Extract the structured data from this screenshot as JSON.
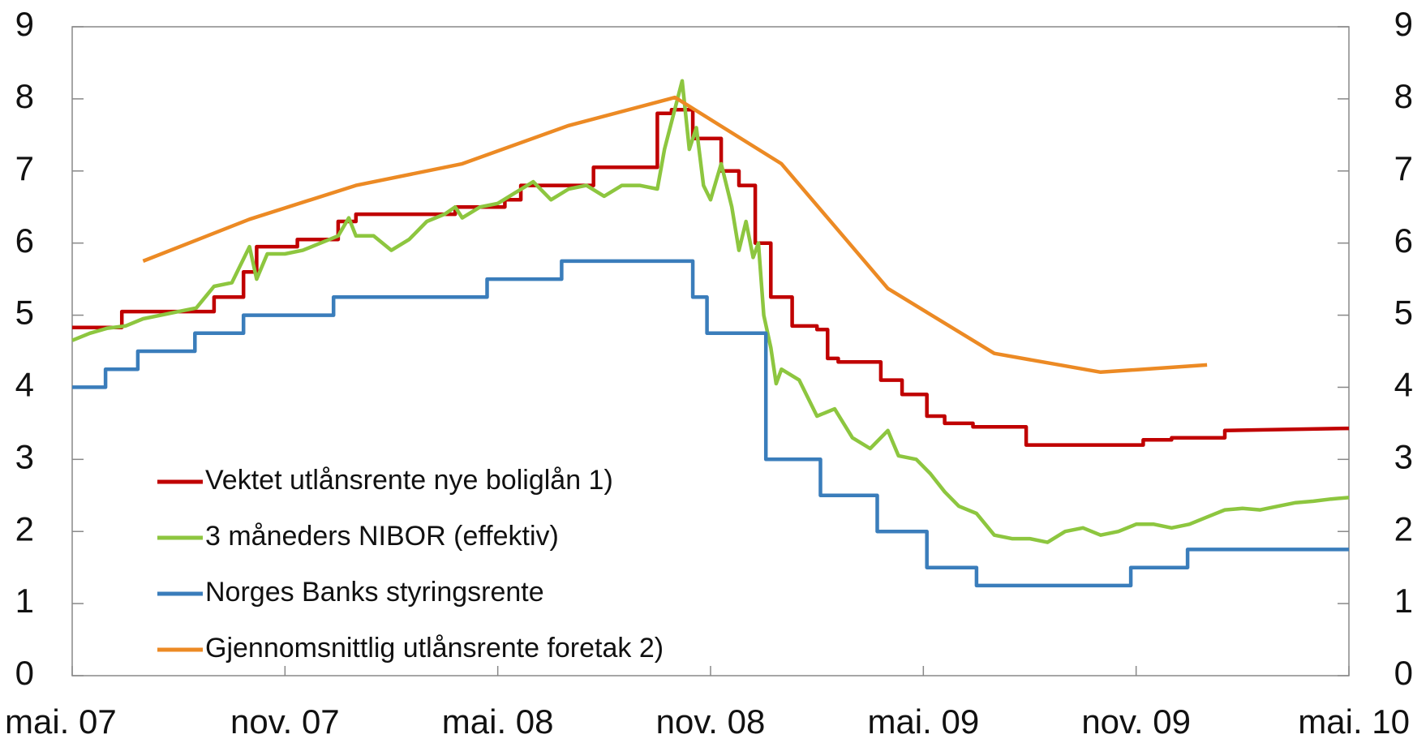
{
  "chart_data": {
    "type": "line",
    "xlim": [
      0,
      36
    ],
    "xticks": [
      {
        "value": 0,
        "label": "mai. 07"
      },
      {
        "value": 6,
        "label": "nov. 07"
      },
      {
        "value": 12,
        "label": "mai. 08"
      },
      {
        "value": 18,
        "label": "nov. 08"
      },
      {
        "value": 24,
        "label": "mai. 09"
      },
      {
        "value": 30,
        "label": "nov. 09"
      },
      {
        "value": 36,
        "label": "mai. 10"
      }
    ],
    "ylim": [
      0,
      9
    ],
    "yticks": [
      0,
      1,
      2,
      3,
      4,
      5,
      6,
      7,
      8,
      9
    ],
    "y2lim": [
      0,
      9
    ],
    "y2ticks": [
      0,
      1,
      2,
      3,
      4,
      5,
      6,
      7,
      8,
      9
    ],
    "legend": "lower left",
    "series": [
      {
        "name": "Vektet utlånsrente nye boliglån 1)",
        "color": "#c00000",
        "x": [
          0,
          1.4,
          1.4,
          4.0,
          4.0,
          4.83,
          4.83,
          5.2,
          5.2,
          6.35,
          6.35,
          7.5,
          7.5,
          8.0,
          8.0,
          10.8,
          10.8,
          12.2,
          12.2,
          12.65,
          12.65,
          14.7,
          14.7,
          16.5,
          16.5,
          16.9,
          16.9,
          17.5,
          17.5,
          18.3,
          18.3,
          18.8,
          18.8,
          19.26,
          19.26,
          19.7,
          19.7,
          20.3,
          20.3,
          21.0,
          21.0,
          21.3,
          21.3,
          21.6,
          21.6,
          22.8,
          22.8,
          23.4,
          23.4,
          24.1,
          24.1,
          24.6,
          24.6,
          25.4,
          25.4,
          26.9,
          26.9,
          30.2,
          30.2,
          31.0,
          31.0,
          32.5,
          32.5,
          36
        ],
        "values": [
          4.83,
          4.83,
          5.05,
          5.05,
          5.25,
          5.25,
          5.6,
          5.6,
          5.95,
          5.95,
          6.05,
          6.05,
          6.3,
          6.3,
          6.4,
          6.4,
          6.5,
          6.5,
          6.6,
          6.6,
          6.8,
          6.8,
          7.05,
          7.05,
          7.8,
          7.8,
          7.85,
          7.85,
          7.45,
          7.45,
          7.0,
          7.0,
          6.8,
          6.8,
          6.0,
          6.0,
          5.25,
          5.25,
          4.85,
          4.85,
          4.8,
          4.8,
          4.4,
          4.4,
          4.35,
          4.35,
          4.1,
          4.1,
          3.9,
          3.9,
          3.6,
          3.6,
          3.5,
          3.5,
          3.45,
          3.45,
          3.2,
          3.2,
          3.27,
          3.27,
          3.3,
          3.3,
          3.4,
          3.43
        ]
      },
      {
        "name": "3 måneders NIBOR (effektiv)",
        "color": "#8dc63f",
        "x": [
          0,
          0.5,
          1,
          1.5,
          2,
          2.5,
          3,
          3.5,
          4,
          4.5,
          5,
          5.2,
          5.5,
          6,
          6.5,
          7,
          7.5,
          7.8,
          8,
          8.5,
          9,
          9.5,
          10,
          10.5,
          10.8,
          11,
          11.5,
          12,
          12.5,
          13,
          13.5,
          14,
          14.5,
          15,
          15.5,
          16,
          16.5,
          16.7,
          17.2,
          17.4,
          17.6,
          17.8,
          18,
          18.3,
          18.6,
          18.8,
          19.0,
          19.2,
          19.35,
          19.5,
          19.7,
          19.85,
          20,
          20.5,
          21,
          21.5,
          22,
          22.5,
          23,
          23.3,
          23.8,
          24.2,
          24.6,
          25,
          25.5,
          26,
          26.5,
          27,
          27.5,
          28,
          28.5,
          29,
          29.5,
          30,
          30.5,
          31,
          31.5,
          32,
          32.5,
          33,
          33.5,
          34,
          34.5,
          35,
          35.5,
          36
        ],
        "values": [
          4.65,
          4.75,
          4.82,
          4.85,
          4.95,
          5.0,
          5.05,
          5.1,
          5.4,
          5.45,
          5.95,
          5.5,
          5.85,
          5.85,
          5.9,
          6.0,
          6.1,
          6.35,
          6.1,
          6.1,
          5.9,
          6.05,
          6.3,
          6.4,
          6.5,
          6.35,
          6.5,
          6.55,
          6.7,
          6.85,
          6.6,
          6.75,
          6.8,
          6.65,
          6.8,
          6.8,
          6.75,
          7.3,
          8.25,
          7.3,
          7.6,
          6.8,
          6.6,
          7.1,
          6.5,
          5.9,
          6.3,
          5.8,
          6.0,
          5.0,
          4.55,
          4.05,
          4.25,
          4.1,
          3.6,
          3.7,
          3.3,
          3.15,
          3.4,
          3.05,
          3.0,
          2.8,
          2.55,
          2.35,
          2.25,
          1.95,
          1.9,
          1.9,
          1.85,
          2.0,
          2.05,
          1.95,
          2.0,
          2.1,
          2.1,
          2.05,
          2.1,
          2.2,
          2.3,
          2.32,
          2.3,
          2.35,
          2.4,
          2.42,
          2.45,
          2.47
        ]
      },
      {
        "name": "Norges Banks styringsrente",
        "color": "#3a7dbb",
        "x": [
          0,
          0.94,
          0.94,
          1.85,
          1.85,
          3.46,
          3.46,
          4.83,
          4.83,
          7.37,
          7.37,
          11.7,
          11.7,
          13.8,
          13.8,
          17.5,
          17.5,
          17.9,
          17.9,
          19.56,
          19.56,
          21.1,
          21.1,
          22.7,
          22.7,
          24.1,
          24.1,
          25.5,
          25.5,
          29.85,
          29.85,
          31.45,
          31.45,
          36
        ],
        "values": [
          4.0,
          4.0,
          4.25,
          4.25,
          4.5,
          4.5,
          4.75,
          4.75,
          5.0,
          5.0,
          5.25,
          5.25,
          5.5,
          5.5,
          5.75,
          5.75,
          5.25,
          5.25,
          4.75,
          4.75,
          3.0,
          3.0,
          2.5,
          2.5,
          2.0,
          2.0,
          1.5,
          1.5,
          1.25,
          1.25,
          1.5,
          1.5,
          1.75,
          1.75
        ]
      },
      {
        "name": "Gjennomsnittlig utlånsrente foretak 2)",
        "color": "#ec8a24",
        "x": [
          2,
          5,
          8,
          11,
          14,
          17,
          20,
          23,
          26,
          29,
          32
        ],
        "values": [
          5.75,
          6.33,
          6.8,
          7.1,
          7.63,
          8.02,
          7.1,
          5.37,
          4.47,
          4.21,
          4.31
        ]
      }
    ]
  }
}
